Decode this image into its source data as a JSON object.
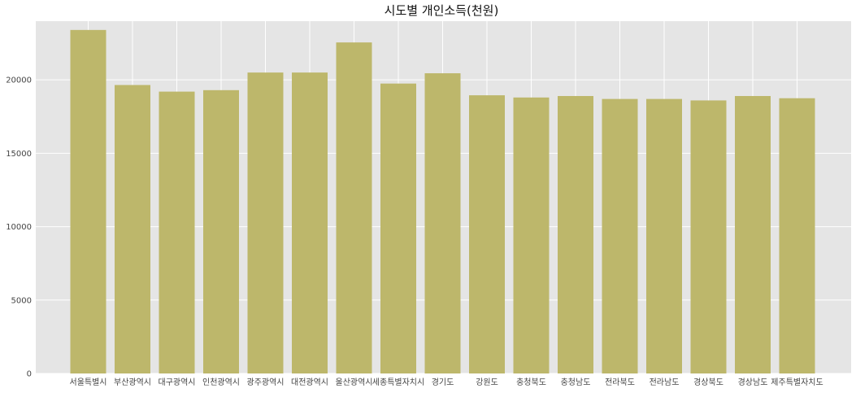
{
  "chart_data": {
    "type": "bar",
    "title": "시도별 개인소득(천원)",
    "xlabel": "",
    "ylabel": "",
    "categories": [
      "서울특별시",
      "부산광역시",
      "대구광역시",
      "인천광역시",
      "광주광역시",
      "대전광역시",
      "울산광역시",
      "세종특별자치시",
      "경기도",
      "강원도",
      "충청북도",
      "충청남도",
      "전라북도",
      "전라남도",
      "경상북도",
      "경상남도",
      "제주특별자치도"
    ],
    "values": [
      23400,
      19650,
      19200,
      19300,
      20500,
      20500,
      22550,
      19750,
      20450,
      18950,
      18800,
      18900,
      18700,
      18700,
      18600,
      18900,
      18750
    ],
    "ylim": [
      0,
      24000
    ],
    "yticks": [
      0,
      5000,
      10000,
      15000,
      20000
    ],
    "grid": true,
    "colors": {
      "bar": "#bdb76b",
      "plot_background": "#e5e5e5",
      "grid": "#ffffff"
    }
  }
}
